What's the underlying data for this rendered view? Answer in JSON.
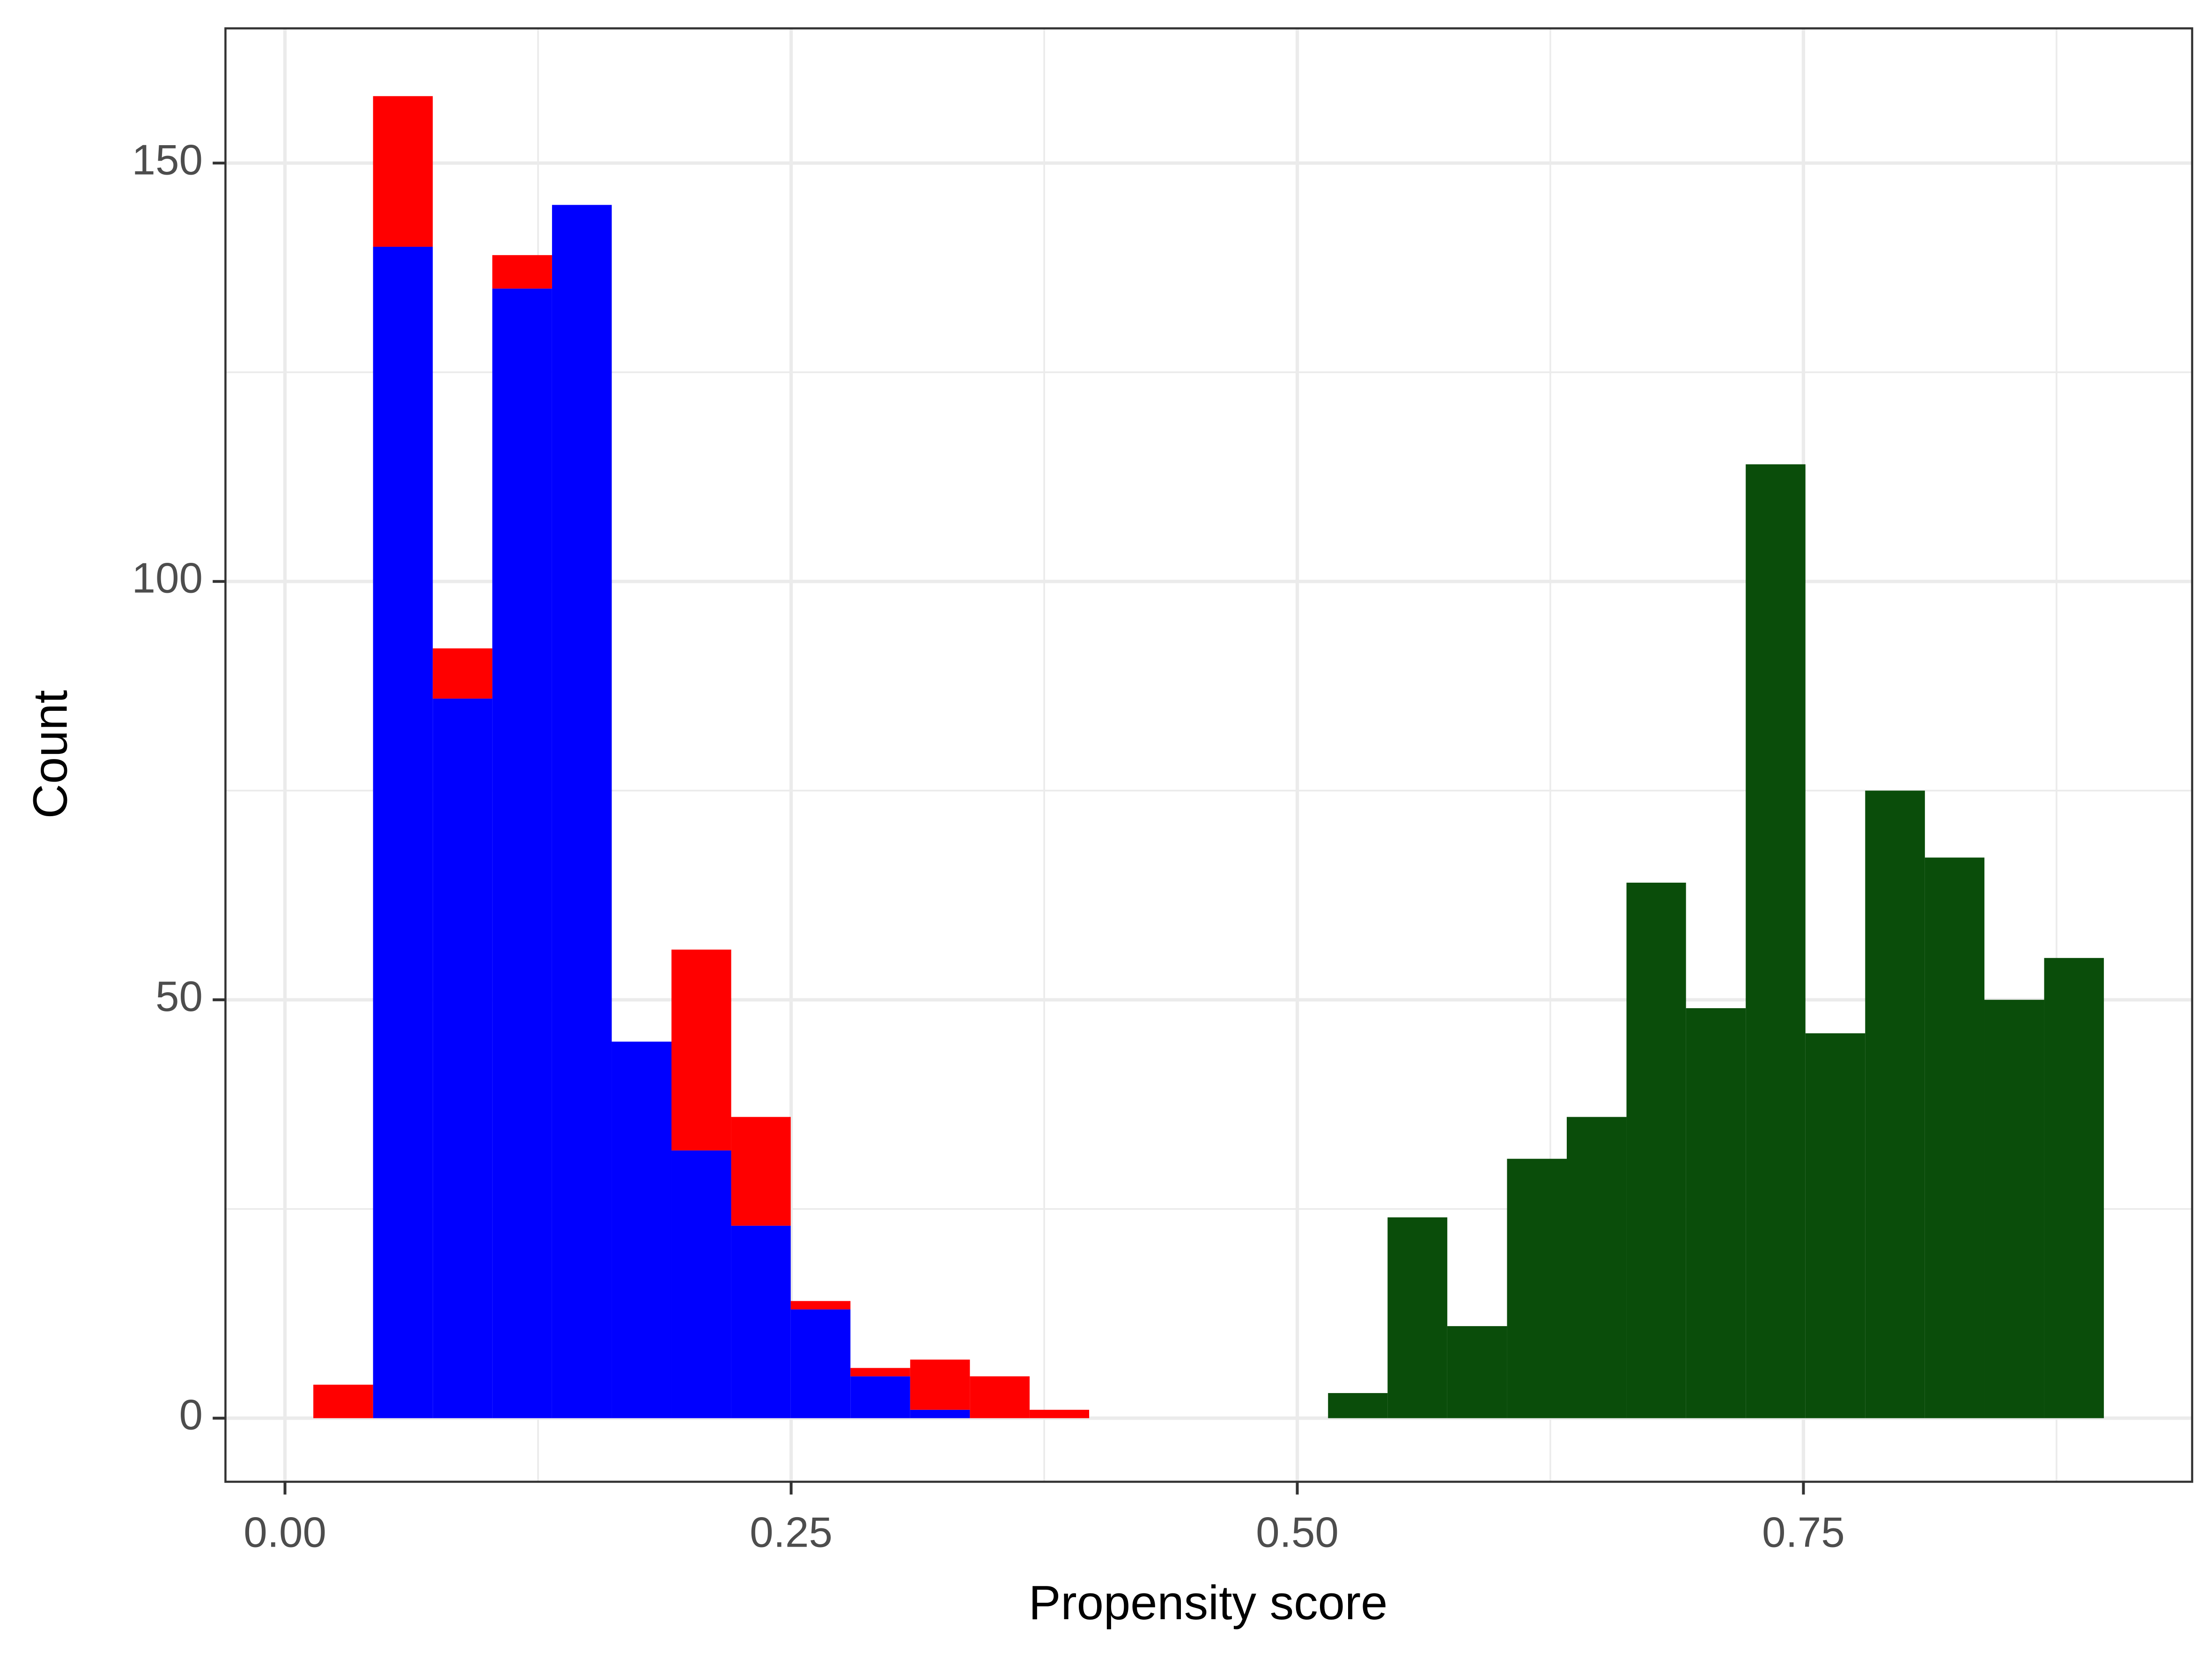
{
  "chart_data": {
    "type": "histogram",
    "xlabel": "Propensity score",
    "ylabel": "Count",
    "bins": [
      0.014,
      0.0435,
      0.073,
      0.1024,
      0.1319,
      0.1614,
      0.1909,
      0.2204,
      0.2498,
      0.2793,
      0.3088,
      0.3383,
      0.3678,
      0.3972,
      0.4267,
      0.4562,
      0.4857,
      0.5152,
      0.5446,
      0.5741,
      0.6036,
      0.6331,
      0.6626,
      0.692,
      0.7215,
      0.751,
      0.7805,
      0.81,
      0.8394,
      0.8689,
      0.8984
    ],
    "stacked": true,
    "series": [
      {
        "color": "#0000ff",
        "values": [
          0,
          140,
          86,
          135,
          145,
          45,
          32,
          23,
          13,
          5,
          1,
          0,
          0,
          0,
          0,
          0,
          0,
          0,
          0,
          0,
          0,
          0,
          0,
          0,
          0,
          0,
          0,
          0,
          0,
          0
        ]
      },
      {
        "color": "#ff0000",
        "values": [
          4,
          18,
          6,
          4,
          0,
          0,
          24,
          13,
          1,
          1,
          6,
          5,
          1,
          0,
          0,
          0,
          0,
          0,
          0,
          0,
          0,
          0,
          0,
          0,
          0,
          0,
          0,
          0,
          0,
          0
        ]
      },
      {
        "color": "#0a4d0a",
        "values": [
          0,
          0,
          0,
          0,
          0,
          0,
          0,
          0,
          0,
          0,
          0,
          0,
          0,
          0,
          0,
          0,
          0,
          3,
          24,
          11,
          31,
          36,
          64,
          49,
          114,
          46,
          75,
          67,
          50,
          55
        ]
      }
    ],
    "xlim": [
      -0.0294,
      0.942
    ],
    "ylim": [
      -7.6,
      166.1
    ],
    "xticks": [
      {
        "value": 0,
        "label": "0.00"
      },
      0.25,
      {
        "value": 0.5,
        "label": "0.50"
      },
      0.75
    ],
    "yticks": [
      0,
      50,
      100,
      150
    ],
    "xminorticks": [
      0.125,
      0.375,
      0.625,
      0.875
    ],
    "yminorticks": [
      25,
      75,
      125
    ],
    "grid": true
  }
}
